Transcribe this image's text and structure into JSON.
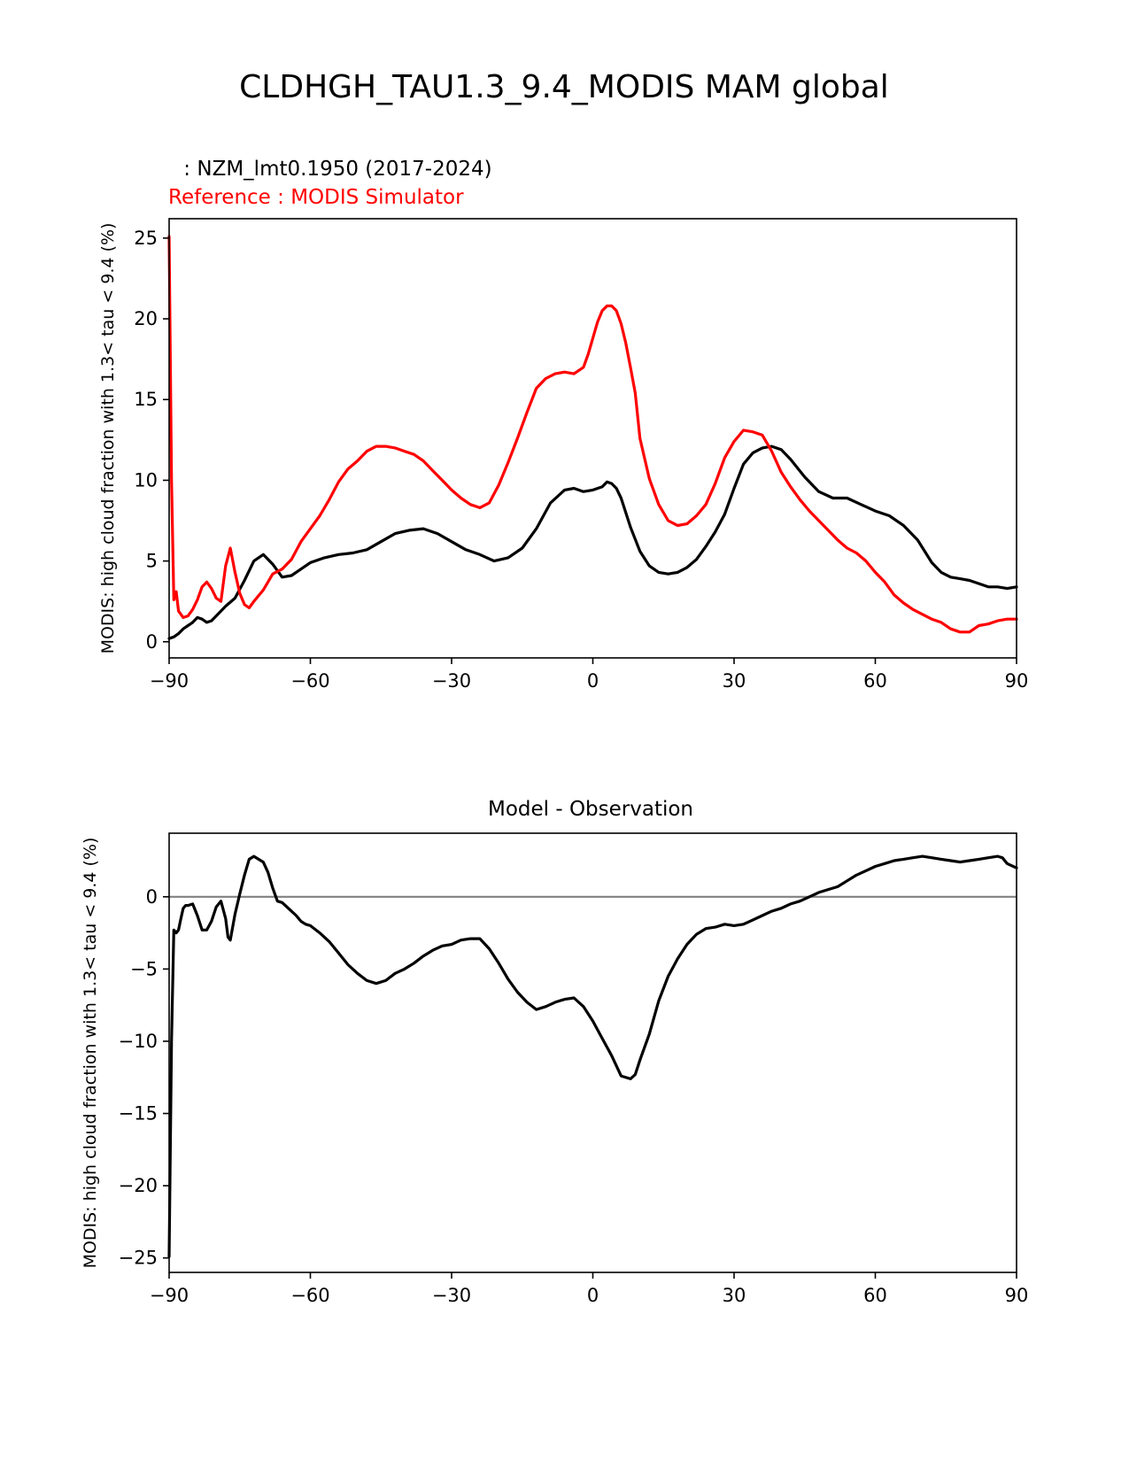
{
  "figure": {
    "title": "CLDHGH_TAU1.3_9.4_MODIS MAM global"
  },
  "chart_data": [
    {
      "type": "line",
      "model_label": " : NZM_lmt0.1950 (2017-2024)",
      "reference_label": "Reference : MODIS Simulator",
      "xlabel": "",
      "ylabel": "MODIS: high cloud fraction with 1.3< tau < 9.4 (%)",
      "xlim": [
        -90,
        90
      ],
      "ylim": [
        -1,
        26.2
      ],
      "xticks": [
        -90,
        -60,
        -30,
        0,
        30,
        60,
        90
      ],
      "xtick_labels": [
        "−90",
        "−60",
        "−30",
        "0",
        "30",
        "60",
        "90"
      ],
      "yticks": [
        0,
        5,
        10,
        15,
        20,
        25
      ],
      "ytick_labels": [
        "0",
        "5",
        "10",
        "15",
        "20",
        "25"
      ],
      "series": [
        {
          "name": "model",
          "color": "#000000",
          "x": [
            -90,
            -89,
            -88,
            -87,
            -86,
            -85,
            -84,
            -83,
            -82,
            -81,
            -80,
            -78,
            -76,
            -74,
            -72,
            -70,
            -68,
            -66,
            -64,
            -62,
            -60,
            -57,
            -54,
            -51,
            -48,
            -45,
            -42,
            -39,
            -36,
            -33,
            -30,
            -27,
            -24,
            -21,
            -18,
            -15,
            -12,
            -9,
            -6,
            -4,
            -2,
            0,
            2,
            3,
            4,
            5,
            6,
            8,
            10,
            12,
            14,
            16,
            18,
            20,
            22,
            24,
            26,
            28,
            30,
            32,
            34,
            36,
            38,
            40,
            42,
            45,
            48,
            51,
            54,
            57,
            60,
            63,
            66,
            69,
            72,
            74,
            76,
            78,
            80,
            82,
            84,
            86,
            88,
            90
          ],
          "y": [
            0.2,
            0.3,
            0.5,
            0.8,
            1.0,
            1.2,
            1.5,
            1.4,
            1.2,
            1.3,
            1.6,
            2.2,
            2.7,
            3.8,
            5.0,
            5.4,
            4.8,
            4.0,
            4.1,
            4.5,
            4.9,
            5.2,
            5.4,
            5.5,
            5.7,
            6.2,
            6.7,
            6.9,
            7.0,
            6.7,
            6.2,
            5.7,
            5.4,
            5.0,
            5.2,
            5.8,
            7.0,
            8.6,
            9.4,
            9.5,
            9.3,
            9.4,
            9.6,
            9.9,
            9.8,
            9.5,
            8.9,
            7.1,
            5.6,
            4.7,
            4.3,
            4.2,
            4.3,
            4.6,
            5.1,
            5.9,
            6.8,
            7.9,
            9.5,
            11.0,
            11.7,
            12.0,
            12.1,
            11.9,
            11.3,
            10.2,
            9.3,
            8.9,
            8.9,
            8.5,
            8.1,
            7.8,
            7.2,
            6.3,
            4.9,
            4.3,
            4.0,
            3.9,
            3.8,
            3.6,
            3.4,
            3.4,
            3.3,
            3.4
          ]
        },
        {
          "name": "reference",
          "color": "#ff0000",
          "x": [
            -90,
            -89.5,
            -89,
            -88.5,
            -88,
            -87,
            -86,
            -85,
            -84,
            -83,
            -82,
            -81,
            -80,
            -79,
            -78,
            -77,
            -76,
            -75,
            -74,
            -73,
            -72,
            -70,
            -68,
            -66,
            -64,
            -62,
            -60,
            -58,
            -56,
            -54,
            -52,
            -50,
            -48,
            -46,
            -44,
            -42,
            -40,
            -38,
            -36,
            -34,
            -32,
            -30,
            -28,
            -26,
            -24,
            -22,
            -20,
            -18,
            -16,
            -14,
            -12,
            -10,
            -8,
            -6,
            -4,
            -2,
            -1,
            0,
            1,
            2,
            3,
            4,
            5,
            6,
            7,
            8,
            9,
            10,
            12,
            14,
            16,
            18,
            20,
            22,
            24,
            26,
            28,
            30,
            32,
            34,
            36,
            38,
            40,
            42,
            44,
            46,
            48,
            50,
            52,
            54,
            56,
            58,
            60,
            62,
            64,
            66,
            68,
            70,
            72,
            74,
            76,
            78,
            80,
            82,
            84,
            85,
            86,
            88,
            90
          ],
          "y": [
            25.1,
            10.0,
            2.6,
            3.1,
            1.9,
            1.5,
            1.6,
            2.0,
            2.6,
            3.4,
            3.7,
            3.3,
            2.7,
            2.5,
            4.7,
            5.8,
            4.3,
            3.0,
            2.3,
            2.1,
            2.5,
            3.2,
            4.2,
            4.5,
            5.1,
            6.2,
            7.0,
            7.8,
            8.8,
            9.9,
            10.7,
            11.2,
            11.8,
            12.1,
            12.1,
            12.0,
            11.8,
            11.6,
            11.2,
            10.6,
            10.0,
            9.4,
            8.9,
            8.5,
            8.3,
            8.6,
            9.7,
            11.1,
            12.6,
            14.2,
            15.7,
            16.3,
            16.6,
            16.7,
            16.6,
            17.0,
            17.8,
            18.8,
            19.8,
            20.5,
            20.8,
            20.8,
            20.5,
            19.7,
            18.5,
            17.0,
            15.4,
            12.6,
            10.1,
            8.5,
            7.5,
            7.2,
            7.3,
            7.8,
            8.5,
            9.8,
            11.4,
            12.4,
            13.1,
            13.0,
            12.8,
            11.8,
            10.5,
            9.6,
            8.8,
            8.1,
            7.5,
            6.9,
            6.3,
            5.8,
            5.5,
            5.0,
            4.3,
            3.7,
            2.9,
            2.4,
            2.0,
            1.7,
            1.4,
            1.2,
            0.8,
            0.6,
            0.6,
            1.0,
            1.1,
            1.2,
            1.3,
            1.4,
            1.4
          ]
        }
      ]
    },
    {
      "type": "line",
      "title": "Model - Observation",
      "xlabel": "",
      "ylabel": "MODIS: high cloud fraction with 1.3< tau < 9.4 (%)",
      "xlim": [
        -90,
        90
      ],
      "ylim": [
        -26,
        4.4
      ],
      "xticks": [
        -90,
        -60,
        -30,
        0,
        30,
        60,
        90
      ],
      "xtick_labels": [
        "−90",
        "−60",
        "−30",
        "0",
        "30",
        "60",
        "90"
      ],
      "yticks": [
        0,
        -5,
        -10,
        -15,
        -20,
        -25
      ],
      "ytick_labels": [
        "0",
        "−5",
        "−10",
        "−15",
        "−20",
        "−25"
      ],
      "zero_line_color": "#808080",
      "series": [
        {
          "name": "difference",
          "color": "#000000",
          "x": [
            -90,
            -89.5,
            -89,
            -88.5,
            -88,
            -87.5,
            -87,
            -86.5,
            -86,
            -85,
            -84,
            -83,
            -82,
            -81,
            -80,
            -79,
            -78,
            -77.5,
            -77,
            -76,
            -75,
            -74,
            -73,
            -72,
            -71,
            -70,
            -69,
            -68,
            -67,
            -66,
            -65,
            -64,
            -63,
            -62,
            -61,
            -60,
            -58,
            -56,
            -54,
            -52,
            -50,
            -48,
            -46,
            -44,
            -42,
            -40,
            -38,
            -36,
            -34,
            -32,
            -30,
            -28,
            -26,
            -24,
            -22,
            -20,
            -18,
            -16,
            -14,
            -12,
            -10,
            -8,
            -6,
            -4,
            -2,
            0,
            2,
            4,
            6,
            8,
            9,
            10,
            12,
            14,
            16,
            18,
            20,
            22,
            24,
            26,
            28,
            30,
            32,
            34,
            36,
            38,
            40,
            42,
            44,
            46,
            48,
            50,
            52,
            54,
            56,
            58,
            60,
            62,
            64,
            66,
            68,
            70,
            72,
            74,
            76,
            78,
            80,
            82,
            84,
            86,
            87,
            88,
            90
          ],
          "y": [
            -24.9,
            -10.0,
            -2.3,
            -2.5,
            -2.3,
            -1.5,
            -0.8,
            -0.6,
            -0.6,
            -0.5,
            -1.3,
            -2.3,
            -2.3,
            -1.7,
            -0.7,
            -0.3,
            -1.5,
            -2.8,
            -3.0,
            -1.2,
            0.2,
            1.5,
            2.6,
            2.8,
            2.6,
            2.4,
            1.7,
            0.6,
            -0.3,
            -0.4,
            -0.7,
            -1.0,
            -1.3,
            -1.7,
            -1.9,
            -2.0,
            -2.5,
            -3.1,
            -3.9,
            -4.7,
            -5.3,
            -5.8,
            -6.0,
            -5.8,
            -5.3,
            -5.0,
            -4.6,
            -4.1,
            -3.7,
            -3.4,
            -3.3,
            -3.0,
            -2.9,
            -2.9,
            -3.6,
            -4.6,
            -5.7,
            -6.6,
            -7.3,
            -7.8,
            -7.6,
            -7.3,
            -7.1,
            -7.0,
            -7.6,
            -8.6,
            -9.8,
            -11.0,
            -12.4,
            -12.6,
            -12.3,
            -11.3,
            -9.5,
            -7.2,
            -5.5,
            -4.3,
            -3.3,
            -2.6,
            -2.2,
            -2.1,
            -1.9,
            -2.0,
            -1.9,
            -1.6,
            -1.3,
            -1.0,
            -0.8,
            -0.5,
            -0.3,
            0.0,
            0.3,
            0.5,
            0.7,
            1.1,
            1.5,
            1.8,
            2.1,
            2.3,
            2.5,
            2.6,
            2.7,
            2.8,
            2.7,
            2.6,
            2.5,
            2.4,
            2.5,
            2.6,
            2.7,
            2.8,
            2.7,
            2.3,
            2.0
          ]
        }
      ]
    }
  ]
}
